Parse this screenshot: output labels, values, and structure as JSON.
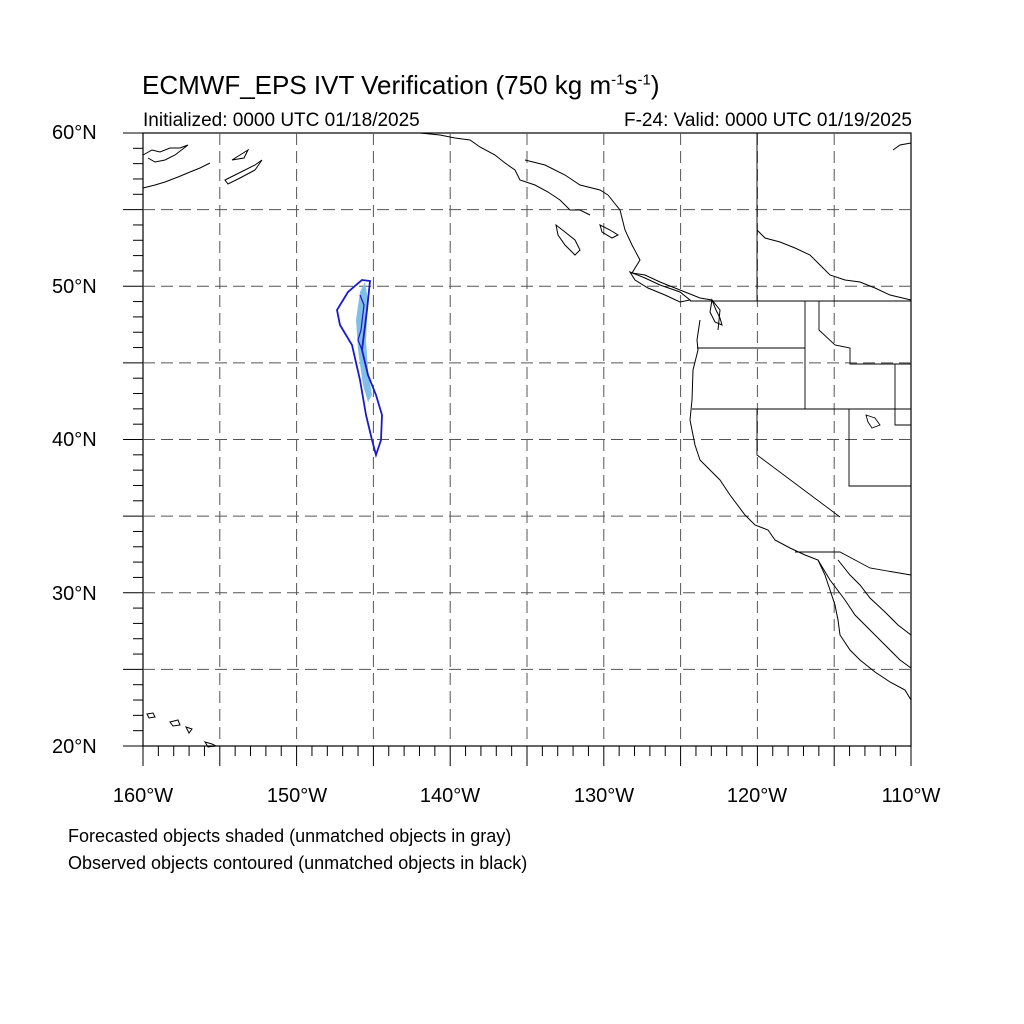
{
  "title": {
    "text": "ECMWF_EPS IVT Verification (750 kg m",
    "sup1": "-1",
    "mid": "s",
    "sup2": "-1",
    "end": ")"
  },
  "subtitle_left": "Initialized: 0000 UTC 01/18/2025",
  "subtitle_right": "F-24: Valid: 0000 UTC 01/19/2025",
  "lat_labels": [
    "60°N",
    "50°N",
    "40°N",
    "30°N",
    "20°N"
  ],
  "lon_labels": [
    "160°W",
    "150°W",
    "140°W",
    "130°W",
    "120°W",
    "110°W"
  ],
  "map_extent": {
    "lon_min": -160,
    "lon_max": -110,
    "lat_min": 20,
    "lat_max": 60
  },
  "grid": {
    "spacing_deg": 5,
    "style": "dashed"
  },
  "colors": {
    "forecast_fill": "#7fbfe8",
    "observed_contour": "#1a1acc",
    "coastline": "#000000",
    "grid": "#555555"
  },
  "notes": [
    "Forecasted objects shaded (unmatched objects in gray)",
    "Observed objects contoured (unmatched objects in black)"
  ]
}
